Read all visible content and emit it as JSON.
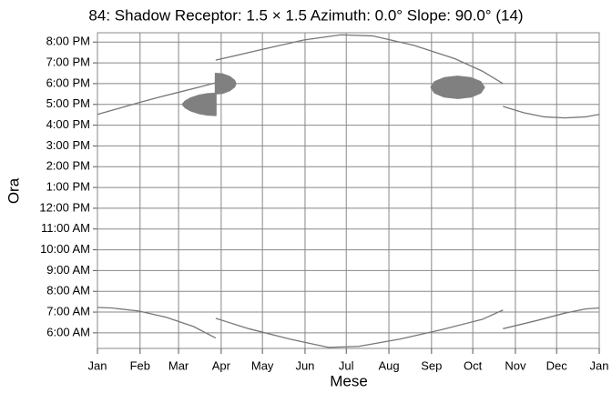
{
  "chart_data": {
    "type": "line",
    "title": "84: Shadow Receptor: 1.5 × 1.5  Azimuth: 0.0°  Slope: 90.0° (14)",
    "x_label": "Mese",
    "y_label": "Ora",
    "xlim": [
      0,
      365
    ],
    "xticks": [
      {
        "value": 0,
        "label": "Jan"
      },
      {
        "value": 31,
        "label": "Feb"
      },
      {
        "value": 59,
        "label": "Mar"
      },
      {
        "value": 90,
        "label": "Apr"
      },
      {
        "value": 120,
        "label": "May"
      },
      {
        "value": 151,
        "label": "Jun"
      },
      {
        "value": 181,
        "label": "Jul"
      },
      {
        "value": 212,
        "label": "Aug"
      },
      {
        "value": 243,
        "label": "Sep"
      },
      {
        "value": 273,
        "label": "Oct"
      },
      {
        "value": 304,
        "label": "Nov"
      },
      {
        "value": 334,
        "label": "Dec"
      },
      {
        "value": 365,
        "label": "Jan"
      }
    ],
    "ylim": [
      5.25,
      20.45
    ],
    "yticks": [
      {
        "value": 6,
        "label": "6:00 AM"
      },
      {
        "value": 7,
        "label": "7:00 AM"
      },
      {
        "value": 8,
        "label": "8:00 AM"
      },
      {
        "value": 9,
        "label": "9:00 AM"
      },
      {
        "value": 10,
        "label": "10:00 AM"
      },
      {
        "value": 11,
        "label": "11:00 AM"
      },
      {
        "value": 12,
        "label": "12:00 PM"
      },
      {
        "value": 13,
        "label": "1:00 PM"
      },
      {
        "value": 14,
        "label": "2:00 PM"
      },
      {
        "value": 15,
        "label": "3:00 PM"
      },
      {
        "value": 16,
        "label": "4:00 PM"
      },
      {
        "value": 17,
        "label": "5:00 PM"
      },
      {
        "value": 18,
        "label": "6:00 PM"
      },
      {
        "value": 19,
        "label": "7:00 PM"
      },
      {
        "value": 20,
        "label": "8:00 PM"
      }
    ],
    "grid": true,
    "series": [
      {
        "type": "line",
        "color": "#777777",
        "x": [
          0,
          15,
          30,
          45,
          60,
          75,
          86
        ],
        "values": [
          16.52,
          16.8,
          17.08,
          17.35,
          17.6,
          17.85,
          18.04
        ]
      },
      {
        "type": "line",
        "color": "#777777",
        "x": [
          86,
          120,
          150,
          177,
          200,
          230,
          260,
          280,
          295
        ],
        "values": [
          19.13,
          19.65,
          20.1,
          20.35,
          20.3,
          19.85,
          19.2,
          18.6,
          18.0
        ]
      },
      {
        "type": "line",
        "color": "#777777",
        "x": [
          295,
          310,
          325,
          340,
          355,
          365
        ],
        "values": [
          16.9,
          16.6,
          16.4,
          16.35,
          16.4,
          16.52
        ]
      },
      {
        "type": "line",
        "color": "#777777",
        "x": [
          0,
          10,
          30,
          50,
          70,
          86
        ],
        "values": [
          7.22,
          7.2,
          7.05,
          6.75,
          6.3,
          5.75
        ]
      },
      {
        "type": "line",
        "color": "#777777",
        "x": [
          86,
          110,
          140,
          168,
          190,
          220,
          250,
          280,
          295
        ],
        "values": [
          6.7,
          6.2,
          5.7,
          5.3,
          5.35,
          5.7,
          6.15,
          6.65,
          7.1
        ]
      },
      {
        "type": "line",
        "color": "#777777",
        "x": [
          295,
          320,
          340,
          355,
          365
        ],
        "values": [
          6.2,
          6.6,
          6.95,
          7.15,
          7.2
        ]
      },
      {
        "type": "area",
        "color": "#808080",
        "x": [
          86,
          80,
          74,
          68,
          64,
          62,
          64,
          68,
          74,
          80,
          86
        ],
        "values": [
          17.52,
          17.5,
          17.43,
          17.3,
          17.15,
          17.0,
          16.85,
          16.7,
          16.57,
          16.5,
          16.48
        ]
      },
      {
        "type": "area",
        "color": "#808080",
        "x": [
          86,
          91,
          96,
          99.5,
          100.5,
          99.5,
          96,
          91,
          86
        ],
        "values": [
          18.48,
          18.45,
          18.33,
          18.15,
          18.0,
          17.85,
          17.67,
          17.55,
          17.52
        ]
      },
      {
        "type": "area",
        "color": "#808080",
        "x": [
          281.2,
          278.6,
          271.6,
          262,
          252.4,
          245.4,
          242.8,
          245.4,
          252.4,
          262,
          271.6,
          278.6
        ],
        "values": [
          17.82,
          18.08,
          18.27,
          18.34,
          18.27,
          18.08,
          17.82,
          17.56,
          17.37,
          17.3,
          17.37,
          17.56
        ]
      }
    ]
  }
}
